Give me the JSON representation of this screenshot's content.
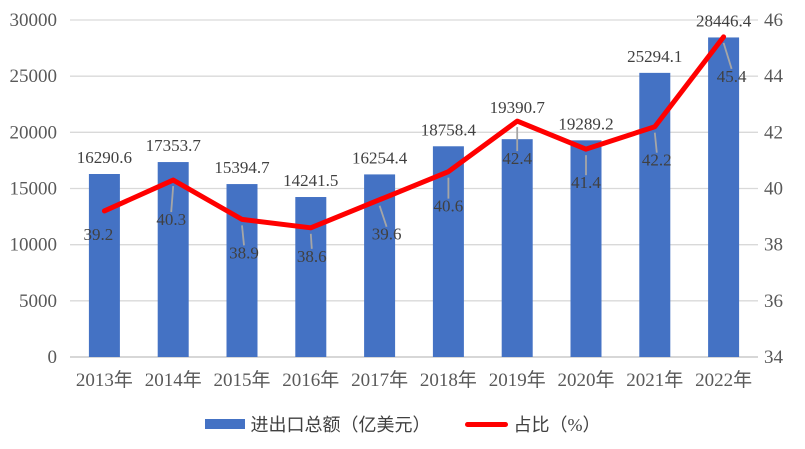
{
  "chart_data": {
    "type": "combo-bar-line",
    "categories": [
      "2013年",
      "2014年",
      "2015年",
      "2016年",
      "2017年",
      "2018年",
      "2019年",
      "2020年",
      "2021年",
      "2022年"
    ],
    "series": [
      {
        "name": "进出口总额（亿美元）",
        "type": "bar",
        "yaxis": "left",
        "color": "#4472C4",
        "values": [
          16290.6,
          17353.7,
          15394.7,
          14241.5,
          16254.4,
          18758.4,
          19390.7,
          19289.2,
          25294.1,
          28446.4
        ]
      },
      {
        "name": "占比（%）",
        "type": "line",
        "yaxis": "right",
        "color": "#FF0000",
        "values": [
          39.2,
          40.3,
          38.9,
          38.6,
          39.6,
          40.6,
          42.4,
          41.4,
          42.2,
          45.4
        ]
      }
    ],
    "left_axis": {
      "min": 0,
      "max": 30000,
      "step": 5000,
      "tick_labels": [
        "0",
        "5000",
        "10000",
        "15000",
        "20000",
        "25000",
        "30000"
      ]
    },
    "right_axis": {
      "min": 34,
      "max": 46,
      "step": 2,
      "tick_labels": [
        "34",
        "36",
        "38",
        "40",
        "42",
        "44",
        "46"
      ]
    },
    "grid": true,
    "legend_position": "bottom",
    "colors": {
      "grid": "#D9D9D9",
      "baseline": "#BFBFBF",
      "axis_text": "#595959",
      "data_label_text": "#404040",
      "leader": "#A6A6A6"
    }
  }
}
